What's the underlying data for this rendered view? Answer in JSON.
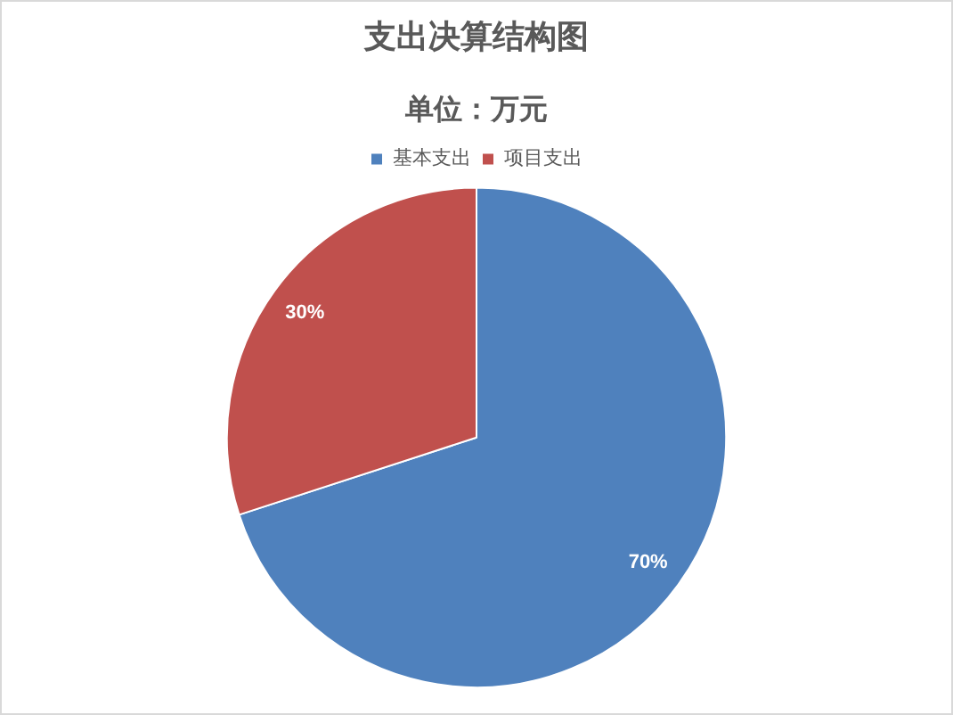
{
  "chart_data": {
    "type": "pie",
    "title": "支出决算结构图",
    "subtitle": "单位：万元",
    "categories": [
      "基本支出",
      "项目支出"
    ],
    "values": [
      70,
      30
    ],
    "colors": [
      "#4f81bd",
      "#c0504d"
    ],
    "value_labels": [
      "70%",
      "30%"
    ],
    "legend": "top"
  }
}
